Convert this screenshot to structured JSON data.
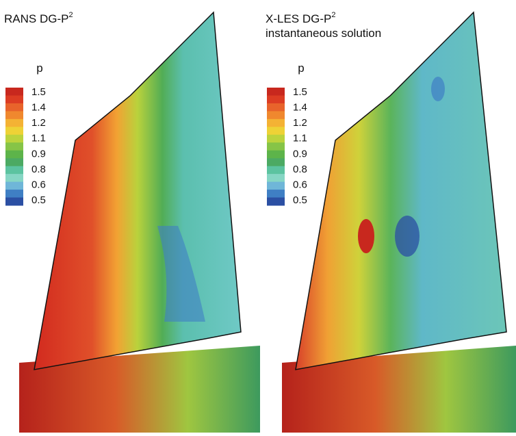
{
  "panels": [
    {
      "title": {
        "text": "RANS DG-P",
        "superscript": "2"
      },
      "subtitle": null
    },
    {
      "title": {
        "text": "X-LES DG-P",
        "superscript": "2"
      },
      "subtitle": "instantaneous solution"
    }
  ],
  "legend": {
    "title": "p",
    "labels": [
      1.5,
      1.4,
      1.2,
      1.1,
      0.9,
      0.8,
      0.6,
      0.5
    ],
    "colors": [
      "#c8281e",
      "#dc3c23",
      "#e8632b",
      "#f0882e",
      "#f4b234",
      "#eed236",
      "#bcd33d",
      "#86c447",
      "#5db44a",
      "#4caa63",
      "#5cc3a0",
      "#86d6c4",
      "#6fb6d8",
      "#3f7fc4",
      "#2b4fa3"
    ]
  }
}
